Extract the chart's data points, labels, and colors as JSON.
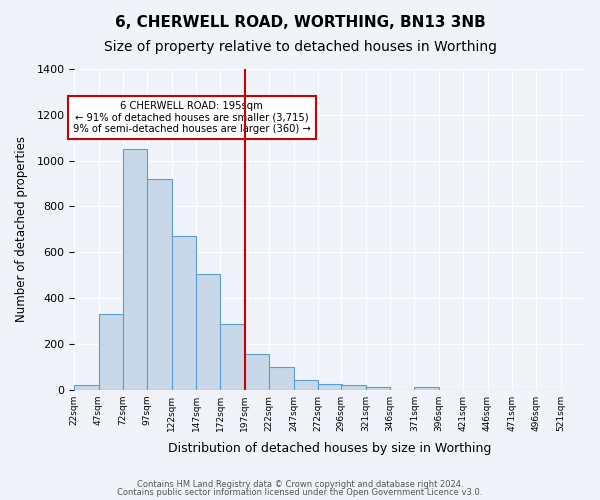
{
  "title1": "6, CHERWELL ROAD, WORTHING, BN13 3NB",
  "title2": "Size of property relative to detached houses in Worthing",
  "xlabel": "Distribution of detached houses by size in Worthing",
  "ylabel": "Number of detached properties",
  "footer1": "Contains HM Land Registry data © Crown copyright and database right 2024.",
  "footer2": "Contains public sector information licensed under the Open Government Licence v3.0.",
  "annotation_title": "6 CHERWELL ROAD: 195sqm",
  "annotation_line1": "← 91% of detached houses are smaller (3,715)",
  "annotation_line2": "9% of semi-detached houses are larger (360) →",
  "bar_values": [
    20,
    330,
    1050,
    920,
    670,
    505,
    285,
    155,
    100,
    42,
    25,
    20,
    10,
    0,
    12,
    0,
    0,
    0,
    0,
    0
  ],
  "bar_labels": [
    "22sqm",
    "47sqm",
    "72sqm",
    "97sqm",
    "122sqm",
    "147sqm",
    "172sqm",
    "197sqm",
    "222sqm",
    "247sqm",
    "272sqm",
    "296sqm",
    "321sqm",
    "346sqm",
    "371sqm",
    "396sqm",
    "421sqm",
    "446sqm",
    "471sqm",
    "496sqm",
    "521sqm"
  ],
  "bin_edges": [
    22,
    47,
    72,
    97,
    122,
    147,
    172,
    197,
    222,
    247,
    272,
    296,
    321,
    346,
    371,
    396,
    421,
    446,
    471,
    496,
    521
  ],
  "bar_color": "#c8d8e8",
  "bar_edge_color": "#5a9fd4",
  "vline_x": 197,
  "vline_color": "#cc0000",
  "ylim": [
    0,
    1400
  ],
  "yticks": [
    0,
    200,
    400,
    600,
    800,
    1000,
    1200,
    1400
  ],
  "bg_color": "#f0f4fa",
  "grid_color": "#ffffff",
  "title1_fontsize": 11,
  "title2_fontsize": 10,
  "annotation_box_color": "#ffffff",
  "annotation_box_edge": "#cc0000"
}
